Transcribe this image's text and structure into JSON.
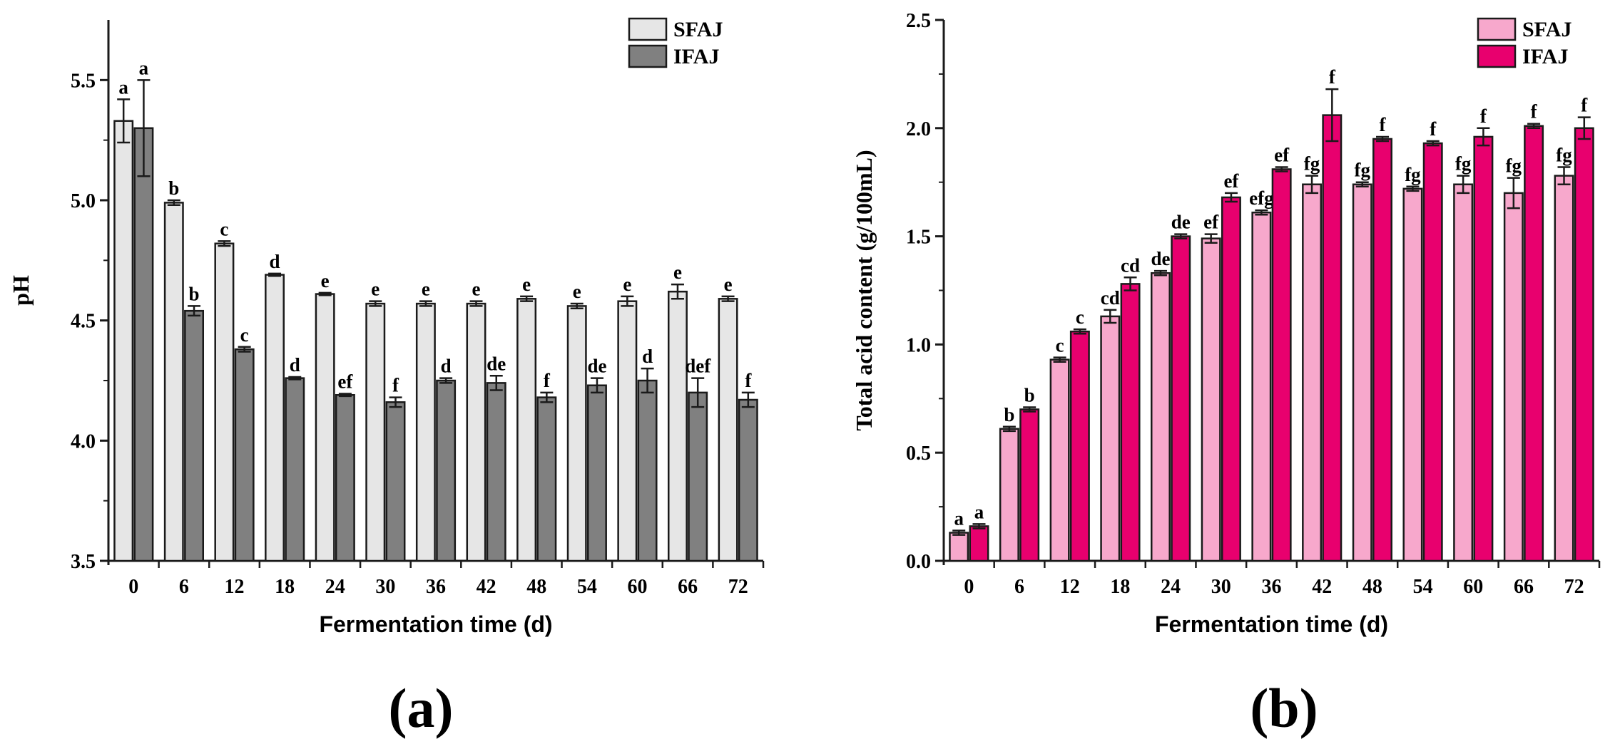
{
  "chart_data": [
    {
      "type": "bar",
      "panel_label": "(a)",
      "xlabel": "Fermentation time (d)",
      "ylabel": "pH",
      "ylim": [
        3.5,
        5.75
      ],
      "yticks": [
        "3.5",
        "4.0",
        "4.5",
        "5.0",
        "5.5"
      ],
      "ytick_values": [
        3.5,
        4.0,
        4.5,
        5.0,
        5.5
      ],
      "categories": [
        "0",
        "6",
        "12",
        "18",
        "24",
        "30",
        "36",
        "42",
        "48",
        "54",
        "60",
        "66",
        "72"
      ],
      "legend_position": "top-right",
      "series": [
        {
          "name": "SFAJ",
          "color": "#e6e6e6",
          "values": [
            5.33,
            4.99,
            4.82,
            4.69,
            4.61,
            4.57,
            4.57,
            4.57,
            4.59,
            4.56,
            4.58,
            4.62,
            4.59
          ],
          "errors": [
            0.09,
            0.01,
            0.01,
            0.005,
            0.005,
            0.01,
            0.01,
            0.01,
            0.01,
            0.01,
            0.02,
            0.03,
            0.01
          ],
          "labels": [
            "a",
            "b",
            "c",
            "d",
            "e",
            "e",
            "e",
            "e",
            "e",
            "e",
            "e",
            "e",
            "e"
          ]
        },
        {
          "name": "IFAJ",
          "color": "#808080",
          "values": [
            5.3,
            4.54,
            4.38,
            4.26,
            4.19,
            4.16,
            4.25,
            4.24,
            4.18,
            4.23,
            4.25,
            4.2,
            4.17
          ],
          "errors": [
            0.2,
            0.02,
            0.01,
            0.005,
            0.005,
            0.02,
            0.01,
            0.03,
            0.02,
            0.03,
            0.05,
            0.06,
            0.03
          ],
          "labels": [
            "a",
            "b",
            "c",
            "d",
            "ef",
            "f",
            "d",
            "de",
            "f",
            "de",
            "d",
            "def",
            "f"
          ]
        }
      ]
    },
    {
      "type": "bar",
      "panel_label": "(b)",
      "xlabel": "Fermentation time (d)",
      "ylabel": "Total acid content (g/100mL)",
      "ylim": [
        0.0,
        2.5
      ],
      "yticks": [
        "0.0",
        "0.5",
        "1.0",
        "1.5",
        "2.0",
        "2.5"
      ],
      "ytick_values": [
        0.0,
        0.5,
        1.0,
        1.5,
        2.0,
        2.5
      ],
      "categories": [
        "0",
        "6",
        "12",
        "18",
        "24",
        "30",
        "36",
        "42",
        "48",
        "54",
        "60",
        "66",
        "72"
      ],
      "legend_position": "top-right",
      "series": [
        {
          "name": "SFAJ",
          "color": "#f7a8cc",
          "values": [
            0.13,
            0.61,
            0.93,
            1.13,
            1.33,
            1.49,
            1.61,
            1.74,
            1.74,
            1.72,
            1.74,
            1.7,
            1.78
          ],
          "errors": [
            0.01,
            0.01,
            0.01,
            0.03,
            0.01,
            0.02,
            0.01,
            0.04,
            0.01,
            0.01,
            0.04,
            0.07,
            0.04
          ],
          "labels": [
            "a",
            "b",
            "c",
            "cd",
            "de",
            "ef",
            "efg",
            "fg",
            "fg",
            "fg",
            "fg",
            "fg",
            "fg"
          ]
        },
        {
          "name": "IFAJ",
          "color": "#e8006e",
          "values": [
            0.16,
            0.7,
            1.06,
            1.28,
            1.5,
            1.68,
            1.81,
            2.06,
            1.95,
            1.93,
            1.96,
            2.01,
            2.0
          ],
          "errors": [
            0.01,
            0.01,
            0.01,
            0.03,
            0.01,
            0.02,
            0.01,
            0.12,
            0.01,
            0.01,
            0.04,
            0.01,
            0.05
          ],
          "labels": [
            "a",
            "b",
            "c",
            "cd",
            "de",
            "ef",
            "ef",
            "f",
            "f",
            "f",
            "f",
            "f",
            "f"
          ]
        }
      ]
    }
  ]
}
